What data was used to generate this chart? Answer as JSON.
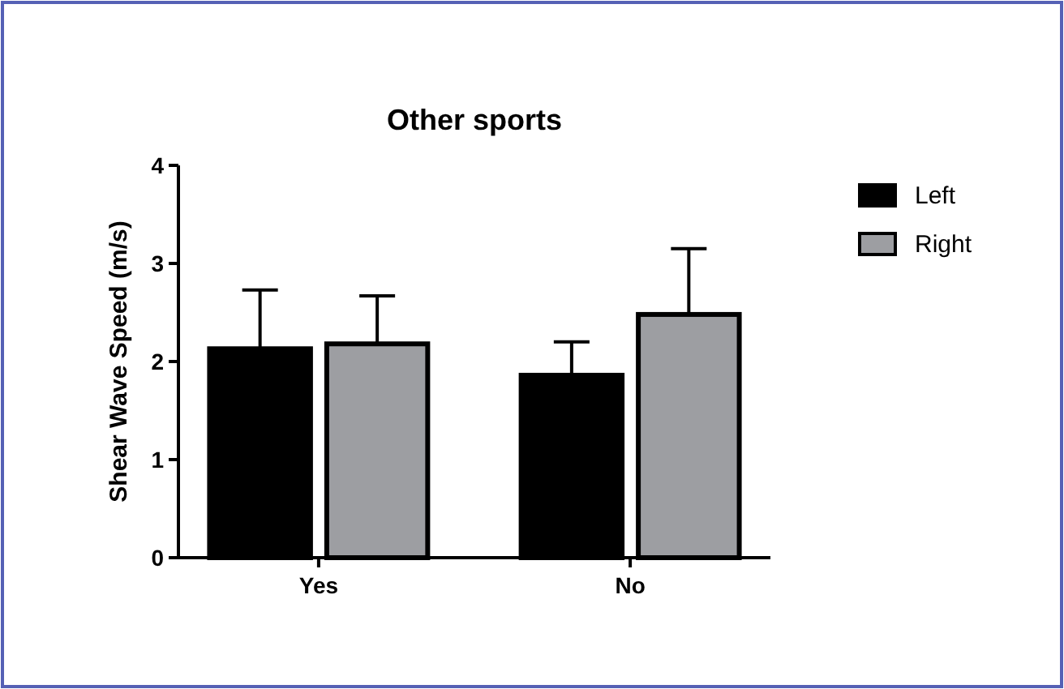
{
  "chart_data": {
    "type": "bar",
    "title": "Other sports",
    "ylabel": "Shear Wave Speed (m/s)",
    "categories": [
      "Yes",
      "No"
    ],
    "series": [
      {
        "name": "Left",
        "color": "#000000",
        "values": [
          2.13,
          1.86
        ],
        "errors": [
          [
            2.13,
            2.73
          ],
          [
            1.86,
            2.2
          ]
        ]
      },
      {
        "name": "Right",
        "color": "#9d9ea2",
        "values": [
          2.18,
          2.48
        ],
        "errors": [
          [
            2.18,
            2.67
          ],
          [
            2.48,
            3.15
          ]
        ]
      }
    ],
    "ylim": [
      0,
      4
    ],
    "yticks": [
      0,
      1,
      2,
      3,
      4
    ],
    "grid": false,
    "legend": "top right"
  }
}
